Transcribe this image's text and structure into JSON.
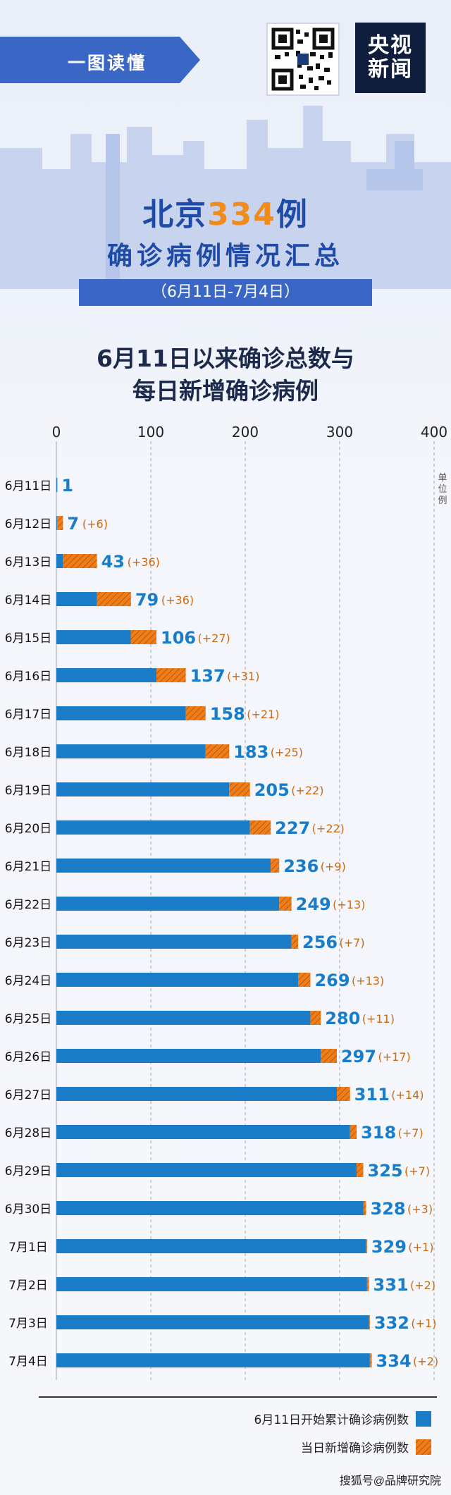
{
  "header": {
    "banner_label": "一图读懂",
    "logo_line1": "央视",
    "logo_line2": "新闻",
    "title_prefix": "北京",
    "title_number": "334",
    "title_suffix": "例",
    "title_line2": "确诊病例情况汇总",
    "date_range": "（6月11日-7月4日）",
    "chart_title_line1": "6月11日以来确诊总数与",
    "chart_title_line2": "每日新增确诊病例"
  },
  "colors": {
    "cumulative": "#1a7cc6",
    "daily": "#ee7d1a",
    "accent": "#f08b1d",
    "title_blue": "#1e4aa8"
  },
  "chart_data": {
    "type": "bar",
    "orientation": "horizontal",
    "stacked": true,
    "xlim": [
      0,
      400
    ],
    "xticks": [
      0,
      100,
      200,
      300,
      400
    ],
    "unit_label": "单位例",
    "grid": true,
    "legend_position": "bottom-right",
    "categories": [
      "6月11日",
      "6月12日",
      "6月13日",
      "6月14日",
      "6月15日",
      "6月16日",
      "6月17日",
      "6月18日",
      "6月19日",
      "6月20日",
      "6月21日",
      "6月22日",
      "6月23日",
      "6月24日",
      "6月25日",
      "6月26日",
      "6月27日",
      "6月28日",
      "6月29日",
      "6月30日",
      "7月1日",
      "7月2日",
      "7月3日",
      "7月4日"
    ],
    "totals": [
      1,
      7,
      43,
      79,
      106,
      137,
      158,
      183,
      205,
      227,
      236,
      249,
      256,
      269,
      280,
      297,
      311,
      318,
      325,
      328,
      329,
      331,
      332,
      334
    ],
    "daily_labels": [
      "",
      "(+6)",
      "(+36)",
      "(+36)",
      "(+27)",
      "(+31)",
      "(+21)",
      "(+25)",
      "(+22)",
      "(+22)",
      "(+9)",
      "(+13)",
      "(+7)",
      "(+13)",
      "(+11)",
      "(+17)",
      "(+14)",
      "(+7)",
      "(+7)",
      "(+3)",
      "(+1)",
      "(+2)",
      "(+1)",
      "(+2)"
    ],
    "series": [
      {
        "name": "6月11日开始累计确诊病例数",
        "values": [
          1,
          1,
          7,
          43,
          79,
          106,
          137,
          158,
          183,
          205,
          227,
          236,
          249,
          256,
          269,
          280,
          297,
          311,
          318,
          325,
          328,
          329,
          331,
          332
        ]
      },
      {
        "name": "当日新增确诊病例数",
        "values": [
          0,
          6,
          36,
          36,
          27,
          31,
          21,
          25,
          22,
          22,
          9,
          13,
          7,
          13,
          11,
          17,
          14,
          7,
          7,
          3,
          1,
          2,
          1,
          2
        ]
      }
    ]
  },
  "watermark": "搜狐号@品牌研究院"
}
